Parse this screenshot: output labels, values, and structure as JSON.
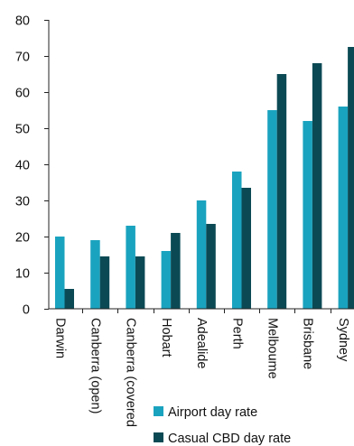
{
  "chart_data": {
    "type": "bar",
    "title": "",
    "xlabel": "",
    "ylabel": "",
    "ylim": [
      0,
      80
    ],
    "yticks": [
      0,
      10,
      20,
      30,
      40,
      50,
      60,
      70,
      80
    ],
    "grid": false,
    "legend_position": "bottom-center",
    "categories": [
      "Darwin",
      "Canberra (open)",
      "Canberra (covered",
      "Hobart",
      "Adealide",
      "Perth",
      "Melboume",
      "Brisbane",
      "Sydney"
    ],
    "series": [
      {
        "name": "Airport day rate",
        "color": "#1aa3bf",
        "values": [
          20,
          19,
          23,
          16,
          30,
          38,
          55,
          52,
          56
        ]
      },
      {
        "name": "Casual CBD day rate",
        "color": "#0b4a55",
        "values": [
          5.5,
          14.5,
          14.5,
          21,
          23.5,
          33.5,
          65,
          68,
          72.5
        ]
      }
    ]
  }
}
